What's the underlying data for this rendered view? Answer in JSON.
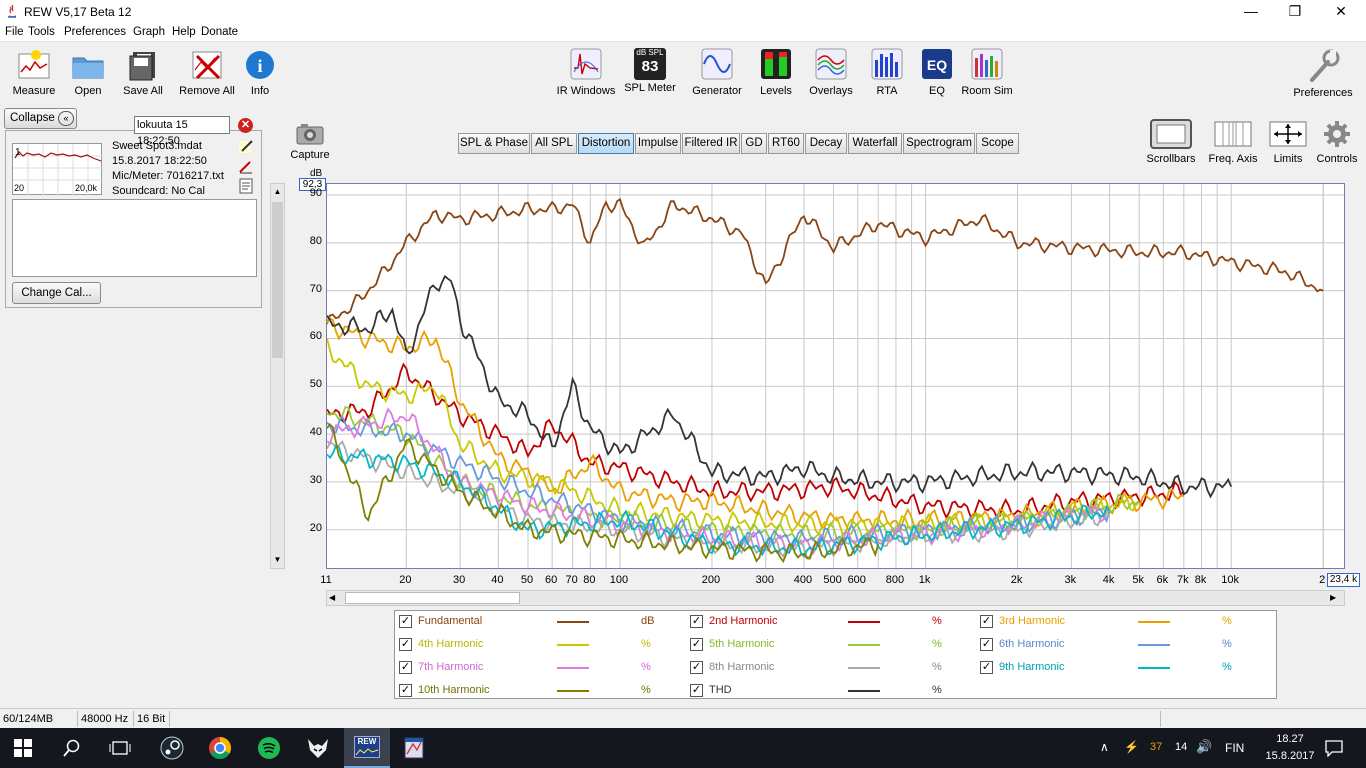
{
  "window": {
    "title": "REW V5,17 Beta 12",
    "min": "—",
    "max": "❐",
    "close": "✕"
  },
  "menu": [
    "File",
    "Tools",
    "Preferences",
    "Graph",
    "Help",
    "Donate"
  ],
  "toolbar_left": [
    "Measure",
    "Open",
    "Save All",
    "Remove All",
    "Info"
  ],
  "toolbar_center": [
    "IR Windows",
    "SPL Meter",
    "Generator",
    "Levels",
    "Overlays",
    "RTA",
    "EQ",
    "Room Sim"
  ],
  "spl_meter": {
    "top": "dB SPL",
    "value": "83"
  },
  "preferences_label": "Preferences",
  "panel": {
    "collapse": "Collapse",
    "date_field": "lokuuta 15 18:22:50",
    "file": "Sweet Spot3.mdat",
    "date": "15.8.2017 18:22:50",
    "mic": "Mic/Meter: 7016217.txt",
    "soundcard": "Soundcard: No Cal",
    "thumb_lo": "20",
    "thumb_hi": "20,0k",
    "thumb_num": "1",
    "change_cal": "Change Cal..."
  },
  "capture_label": "Capture",
  "tabs": [
    "SPL & Phase",
    "All SPL",
    "Distortion",
    "Impulse",
    "Filtered IR",
    "GD",
    "RT60",
    "Decay",
    "Waterfall",
    "Spectrogram",
    "Scope"
  ],
  "active_tab": "Distortion",
  "graph_tools": [
    "Scrollbars",
    "Freq. Axis",
    "Limits",
    "Controls"
  ],
  "chart_data": {
    "type": "line",
    "ylabel": "dB",
    "ymax_box": "92,3",
    "xmax_box": "23,4 k",
    "ylim": [
      12,
      92.3
    ],
    "xlim": [
      11,
      23400
    ],
    "x_scale": "log",
    "y_ticks": [
      "90",
      "80",
      "70",
      "60",
      "50",
      "40",
      "30",
      "20"
    ],
    "x_ticks": [
      "11",
      "20",
      "30",
      "40",
      "50",
      "60",
      "70",
      "80",
      "100",
      "200",
      "300",
      "400",
      "500",
      "600",
      "800",
      "1k",
      "2k",
      "3k",
      "4k",
      "5k",
      "6k",
      "7k",
      "8k",
      "10k",
      "2"
    ],
    "series": [
      {
        "name": "Fundamental",
        "unit": "dB",
        "color": "#8b4513",
        "x": [
          11,
          14,
          17,
          20,
          25,
          30,
          40,
          50,
          60,
          70,
          80,
          90,
          100,
          120,
          150,
          200,
          250,
          300,
          400,
          500,
          700,
          1000,
          1500,
          2000,
          3000,
          5000,
          7000,
          10000,
          15000,
          20000
        ],
        "y": [
          63,
          68,
          74,
          80,
          86,
          85,
          86,
          87,
          87,
          88,
          80,
          88,
          88,
          79,
          88,
          85,
          82,
          71,
          86,
          79,
          84,
          81,
          85,
          80,
          79,
          78,
          78,
          76,
          74,
          70
        ]
      },
      {
        "name": "2nd Harmonic",
        "unit": "%",
        "color": "#c00000",
        "x": [
          11,
          15,
          20,
          25,
          30,
          40,
          50,
          60,
          70,
          80,
          100,
          150,
          200,
          300,
          500,
          1000,
          2000,
          3000,
          5000,
          7000
        ],
        "y": [
          44,
          45,
          53,
          48,
          44,
          40,
          36,
          42,
          38,
          34,
          33,
          30,
          28,
          28,
          29,
          25,
          24,
          26,
          27,
          28
        ]
      },
      {
        "name": "3rd Harmonic",
        "unit": "%",
        "color": "#e8a000",
        "x": [
          11,
          15,
          20,
          25,
          30,
          40,
          50,
          60,
          80,
          100,
          150,
          200,
          300,
          500,
          1000,
          2000,
          5000,
          7000
        ],
        "y": [
          63,
          60,
          58,
          60,
          47,
          35,
          32,
          28,
          34,
          28,
          26,
          26,
          24,
          22,
          22,
          23,
          26,
          27
        ]
      },
      {
        "name": "4th Harmonic",
        "unit": "%",
        "color": "#c8c800",
        "x": [
          11,
          15,
          20,
          25,
          30,
          40,
          60,
          100,
          200,
          400,
          1000,
          2000,
          5000
        ],
        "y": [
          58,
          50,
          48,
          50,
          38,
          32,
          30,
          24,
          22,
          21,
          21,
          22,
          26
        ]
      },
      {
        "name": "5th Harmonic",
        "unit": "%",
        "color": "#99cc33",
        "x": [
          11,
          20,
          30,
          50,
          100,
          200,
          400,
          1000,
          2000,
          5000
        ],
        "y": [
          45,
          40,
          30,
          25,
          22,
          20,
          19,
          20,
          22,
          26
        ]
      },
      {
        "name": "6th Harmonic",
        "unit": "%",
        "color": "#6699dd",
        "x": [
          11,
          20,
          30,
          50,
          100,
          200,
          400,
          1000,
          2000,
          4000
        ],
        "y": [
          42,
          40,
          34,
          28,
          22,
          19,
          18,
          20,
          21,
          24
        ]
      },
      {
        "name": "7th Harmonic",
        "unit": "%",
        "color": "#e07ae0",
        "x": [
          11,
          20,
          30,
          50,
          100,
          200,
          400,
          1000,
          2000,
          4000
        ],
        "y": [
          40,
          44,
          30,
          25,
          21,
          18,
          17,
          19,
          21,
          24
        ]
      },
      {
        "name": "8th Harmonic",
        "unit": "%",
        "color": "#aaaaaa",
        "x": [
          11,
          20,
          30,
          50,
          100,
          200,
          400,
          1000,
          2000,
          4000
        ],
        "y": [
          38,
          32,
          28,
          22,
          20,
          17,
          16,
          19,
          20,
          23
        ]
      },
      {
        "name": "9th Harmonic",
        "unit": "%",
        "color": "#00b8c8",
        "x": [
          11,
          20,
          30,
          50,
          100,
          200,
          400,
          1000,
          2000,
          4000
        ],
        "y": [
          36,
          34,
          30,
          20,
          22,
          17,
          16,
          19,
          21,
          24
        ]
      },
      {
        "name": "10th Harmonic",
        "unit": "%",
        "color": "#808000",
        "x": [
          11,
          15,
          20,
          30,
          50,
          100,
          200,
          400,
          700
        ],
        "y": [
          42,
          23,
          38,
          28,
          20,
          18,
          16,
          15,
          17
        ]
      },
      {
        "name": "THD",
        "unit": "%",
        "color": "#333333",
        "x": [
          11,
          15,
          18,
          20,
          25,
          28,
          30,
          40,
          50,
          60,
          70,
          80,
          100,
          150,
          200,
          300,
          400,
          500,
          700,
          1000,
          2000,
          3000,
          5000,
          7000,
          10000
        ],
        "y": [
          63,
          62,
          66,
          56,
          72,
          72,
          64,
          47,
          44,
          37,
          50,
          41,
          36,
          44,
          32,
          31,
          33,
          31,
          30,
          30,
          32,
          32,
          31,
          29,
          29
        ]
      }
    ]
  },
  "legend": [
    {
      "name": "Fundamental",
      "unit": "dB",
      "color": "#8b4513",
      "text_color": "#8b4513"
    },
    {
      "name": "2nd Harmonic",
      "unit": "%",
      "color": "#c00000",
      "text_color": "#c00000"
    },
    {
      "name": "3rd Harmonic",
      "unit": "%",
      "color": "#e8a000",
      "text_color": "#e8a000"
    },
    {
      "name": "4th Harmonic",
      "unit": "%",
      "color": "#c8c800",
      "text_color": "#b8b800"
    },
    {
      "name": "5th Harmonic",
      "unit": "%",
      "color": "#99cc33",
      "text_color": "#88bb22"
    },
    {
      "name": "6th Harmonic",
      "unit": "%",
      "color": "#6699dd",
      "text_color": "#5588cc"
    },
    {
      "name": "7th Harmonic",
      "unit": "%",
      "color": "#e07ae0",
      "text_color": "#d066d0"
    },
    {
      "name": "8th Harmonic",
      "unit": "%",
      "color": "#aaaaaa",
      "text_color": "#888888"
    },
    {
      "name": "9th Harmonic",
      "unit": "%",
      "color": "#00b8c8",
      "text_color": "#00a0b0"
    },
    {
      "name": "10th Harmonic",
      "unit": "%",
      "color": "#808000",
      "text_color": "#707000"
    },
    {
      "name": "THD",
      "unit": "%",
      "color": "#333333",
      "text_color": "#333333"
    }
  ],
  "status": {
    "memory": "60/124MB",
    "rate": "48000 Hz",
    "bits": "16 Bit"
  },
  "taskbar": {
    "time": "18.27",
    "date": "15.8.2017",
    "lang": "FIN",
    "num1": "37",
    "num2": "14",
    "rew": "REW"
  }
}
